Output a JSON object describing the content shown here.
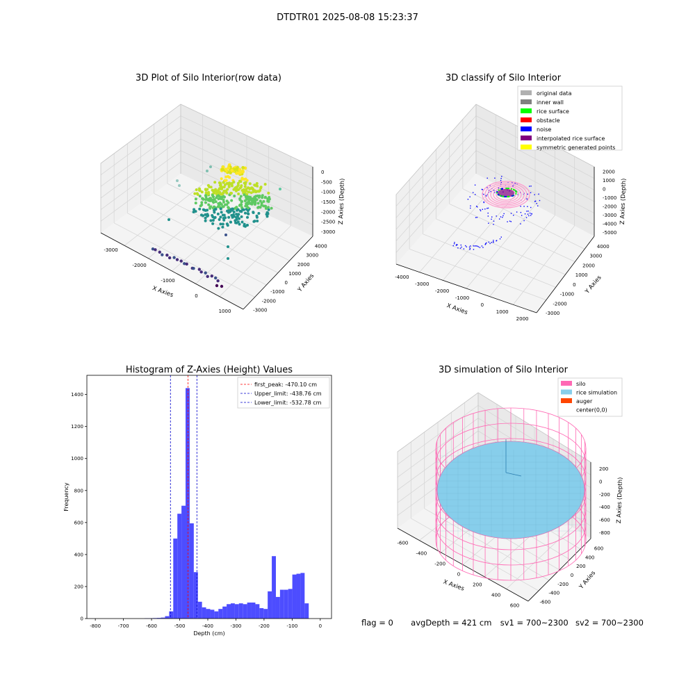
{
  "figure": {
    "suptitle": "DTDTR01 2025-08-08 15:23:37",
    "footer": {
      "flag": "flag = 0",
      "avg_depth": "avgDepth = 421 cm",
      "sv1": "sv1 = 700~2300",
      "sv2": "sv2 = 700~2300"
    }
  },
  "chart_data": [
    {
      "type": "scatter",
      "projection": "3d",
      "title": "3D Plot of Silo Interior(row data)",
      "xlabel": "X Axies",
      "ylabel": "Y Axies",
      "zlabel": "Z Axies (Depth)",
      "xticks": [
        "-3000",
        "-2000",
        "-1000",
        "0",
        "1000"
      ],
      "yticks": [
        "-3000",
        "-2000",
        "-1000",
        "0",
        "1000",
        "2000",
        "3000",
        "4000"
      ],
      "zticks": [
        "0",
        "-500",
        "-1000",
        "-1500",
        "-2000",
        "-2500",
        "-3000"
      ],
      "xlim": [
        -3500,
        1500
      ],
      "ylim": [
        -3500,
        4500
      ],
      "zlim": [
        -3300,
        200
      ],
      "colormap": "viridis",
      "grid": true
    },
    {
      "type": "scatter",
      "projection": "3d",
      "title": "3D classify of Silo Interior",
      "xlabel": "X Axies",
      "ylabel": "Y Axies",
      "zlabel": "Z Axies (Depth)",
      "xticks": [
        "-4000",
        "-3000",
        "-2000",
        "-1000",
        "0",
        "1000",
        "2000"
      ],
      "yticks": [
        "-3000",
        "-2000",
        "-1000",
        "0",
        "1000",
        "2000",
        "3000",
        "4000"
      ],
      "zticks": [
        "2000",
        "1000",
        "0",
        "-1000",
        "-2000",
        "-3000",
        "-4000",
        "-5000"
      ],
      "legend_position": "top-right",
      "legend": [
        {
          "label": "original data",
          "color": "#b0b0b0"
        },
        {
          "label": "inner wall",
          "color": "#808080"
        },
        {
          "label": "rice surface",
          "color": "#00ff00"
        },
        {
          "label": "obstacle",
          "color": "#ff0000"
        },
        {
          "label": "noise",
          "color": "#0000ff"
        },
        {
          "label": "interpolated rice surface",
          "color": "#800080"
        },
        {
          "label": "symmetric generated points",
          "color": "#ffff00"
        }
      ],
      "grid": true
    },
    {
      "type": "bar",
      "title": "Histogram of Z-Axies (Height) Values",
      "xlabel": "Depth (cm)",
      "ylabel": "Frequency",
      "xlim": [
        -830,
        40
      ],
      "ylim": [
        0,
        1520
      ],
      "xticks": [
        -800,
        -700,
        -600,
        -500,
        -400,
        -300,
        -200,
        -100,
        0
      ],
      "yticks": [
        0,
        200,
        400,
        600,
        800,
        1000,
        1200,
        1400
      ],
      "bar_color": "#4d4dff",
      "bin_width": 14.6,
      "bins_start": [
        -625,
        -610.4,
        -595.8,
        -581.2,
        -566.6,
        -552,
        -537.4,
        -522.8,
        -508.2,
        -493.6,
        -479,
        -464.4,
        -449.8,
        -435.2,
        -420.6,
        -406,
        -391.4,
        -376.8,
        -362.2,
        -347.6,
        -333,
        -318.4,
        -303.8,
        -289.2,
        -274.6,
        -260,
        -245.4,
        -230.8,
        -216.2,
        -201.6,
        -187,
        -172.4,
        -157.8,
        -143.2,
        -128.6,
        -114,
        -99.4,
        -84.8,
        -70.2,
        -55.6,
        -41,
        -26.4,
        -11.8
      ],
      "values": [
        2,
        2,
        3,
        4,
        6,
        15,
        45,
        500,
        655,
        705,
        1440,
        595,
        290,
        105,
        70,
        60,
        55,
        45,
        60,
        75,
        90,
        95,
        90,
        95,
        90,
        100,
        100,
        90,
        65,
        60,
        170,
        390,
        135,
        180,
        180,
        185,
        275,
        280,
        285,
        95,
        0,
        0,
        0
      ],
      "lines": [
        {
          "label": "first_peak: -470.10 cm",
          "x": -470.1,
          "color": "#ff0000"
        },
        {
          "label": "Upper_limit: -438.76 cm",
          "x": -438.76,
          "color": "#0000cc"
        },
        {
          "label": "Lower_limit: -532.78 cm",
          "x": -532.78,
          "color": "#0000cc"
        }
      ],
      "legend_position": "top-right"
    },
    {
      "type": "surface",
      "projection": "3d",
      "title": "3D simulation of Silo Interior",
      "xlabel": "X Axies",
      "ylabel": "Y Axies",
      "zlabel": "Z Axies (Depth)",
      "xticks": [
        "-600",
        "-400",
        "-200",
        "0",
        "200",
        "400",
        "600"
      ],
      "yticks": [
        "-600",
        "-400",
        "-200",
        "0",
        "200",
        "400",
        "600"
      ],
      "zticks": [
        "200",
        "0",
        "-200",
        "-400",
        "-600",
        "-800"
      ],
      "legend_position": "top-right",
      "legend": [
        {
          "label": "silo",
          "color": "#ff69b4"
        },
        {
          "label": "rice simulation",
          "color": "#87ceeb"
        },
        {
          "label": "auger",
          "color": "#ff4500"
        },
        {
          "label": "center(0,0)",
          "color": "#ffffff"
        }
      ],
      "grid": true
    }
  ]
}
